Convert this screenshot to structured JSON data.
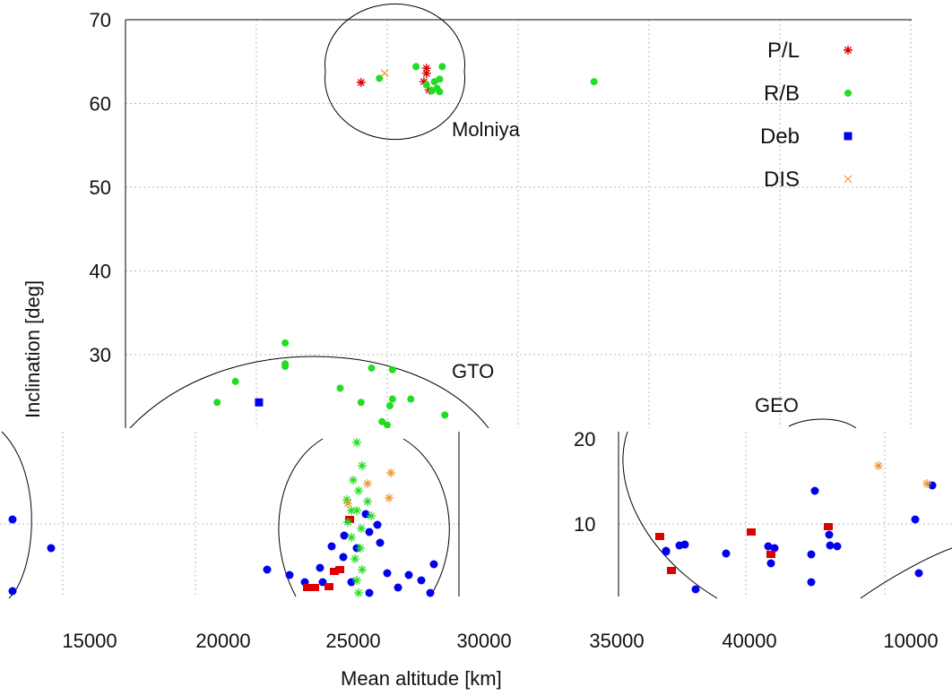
{
  "chart_data": {
    "type": "scatter",
    "title": "",
    "xlabel": "Mean altitude [km]",
    "ylabel": "Inclination [deg]",
    "ylim": [
      20,
      70
    ],
    "y_ticks": [
      "70",
      "60",
      "50",
      "40",
      "30"
    ],
    "x_ticks": [
      "15000",
      "20000",
      "25000",
      "30000",
      "35000",
      "40000",
      "10000"
    ],
    "grid": true,
    "legend_position": "top-right",
    "legend": [
      {
        "key": "pl",
        "label": "P/L",
        "marker": "asterisk",
        "color": "#dd0000"
      },
      {
        "key": "rb",
        "label": "R/B",
        "marker": "circle",
        "color": "#22dd22"
      },
      {
        "key": "deb",
        "label": "Deb",
        "marker": "square",
        "color": "#0000ee"
      },
      {
        "key": "dis",
        "label": "DIS",
        "marker": "cross",
        "color": "#ee9933"
      }
    ],
    "regions": [
      "Molniya",
      "GTO",
      "GEO"
    ],
    "series": [
      {
        "key": "pl",
        "points": [
          [
            24000,
            62.5
          ],
          [
            26500,
            64.2
          ],
          [
            26500,
            63.6
          ],
          [
            26400,
            62.6
          ],
          [
            26600,
            61.6
          ]
        ]
      },
      {
        "key": "rb",
        "points": [
          [
            24700,
            63.0
          ],
          [
            26100,
            64.4
          ],
          [
            26500,
            62.2
          ],
          [
            26700,
            61.5
          ],
          [
            26900,
            61.8
          ],
          [
            27000,
            62.9
          ],
          [
            27100,
            64.4
          ],
          [
            26800,
            62.6
          ],
          [
            27000,
            61.4
          ],
          [
            32900,
            62.6
          ],
          [
            21100,
            31.4
          ],
          [
            21100,
            28.9
          ],
          [
            21100,
            28.6
          ],
          [
            24400,
            28.4
          ],
          [
            25200,
            28.2
          ],
          [
            19200,
            26.8
          ],
          [
            23200,
            26.0
          ],
          [
            18500,
            24.3
          ],
          [
            24000,
            24.3
          ],
          [
            25200,
            24.7
          ],
          [
            25900,
            24.7
          ],
          [
            25100,
            23.9
          ],
          [
            27200,
            22.8
          ],
          [
            24800,
            22.0
          ],
          [
            25000,
            21.6
          ]
        ]
      },
      {
        "key": "deb",
        "points": [
          [
            20100,
            24.3
          ]
        ]
      },
      {
        "key": "dis",
        "points": [
          [
            24900,
            63.6
          ]
        ]
      }
    ]
  }
}
